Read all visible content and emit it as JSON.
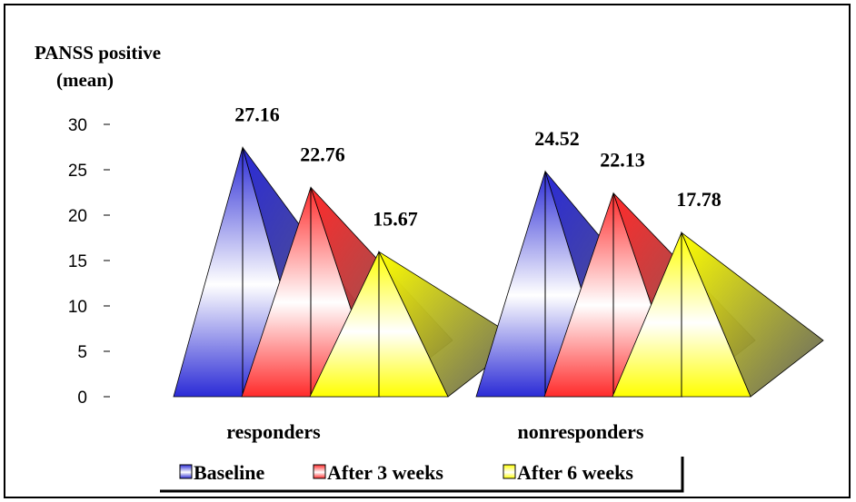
{
  "chart_data": {
    "type": "bar",
    "style": "3d-pyramid",
    "ylabel_line1": "PANSS positive",
    "ylabel_line2": "(mean)",
    "ylim": [
      0,
      30
    ],
    "yticks": [
      0,
      5,
      10,
      15,
      20,
      25,
      30
    ],
    "categories": [
      "responders",
      "nonresponders"
    ],
    "series": [
      {
        "name": "Baseline",
        "values": [
          27.16,
          24.52
        ],
        "color": "#2b2bd6",
        "light": "#ffffff"
      },
      {
        "name": "After 3 weeks",
        "values": [
          22.76,
          22.13
        ],
        "color": "#ff2b2b",
        "light": "#ffffff"
      },
      {
        "name": "After 6 weeks",
        "values": [
          15.67,
          17.78
        ],
        "color": "#ffff00",
        "light": "#ffffff"
      }
    ],
    "data_labels": [
      [
        "27.16",
        "22.76",
        "15.67"
      ],
      [
        "24.52",
        "22.13",
        "17.78"
      ]
    ],
    "legend_position": "bottom",
    "grid": false
  }
}
